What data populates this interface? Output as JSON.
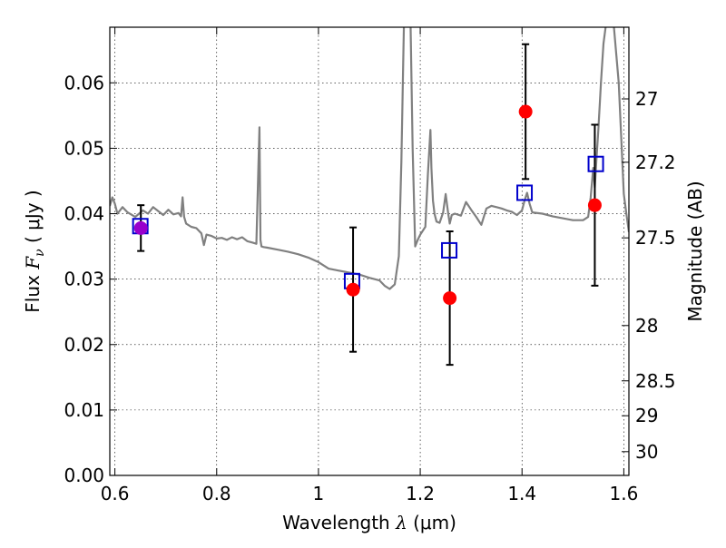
{
  "chart_data": {
    "type": "scatter",
    "title": "",
    "xlabel_prefix": "Wavelength",
    "xlabel_lambda": "λ",
    "xlabel_unit": "(μm)",
    "ylabel_prefix": "Flux",
    "ylabel_symbol": "F",
    "ylabel_sub": "ν",
    "ylabel_unit": "( μJy )",
    "y2label": "Magnitude (AB)",
    "xlim": [
      0.59,
      1.61
    ],
    "ylim": [
      0.0,
      0.0685
    ],
    "grid": true,
    "xticks": [
      {
        "value": 0.6,
        "label": "0.6"
      },
      {
        "value": 0.8,
        "label": "0.8"
      },
      {
        "value": 1.0,
        "label": "1"
      },
      {
        "value": 1.2,
        "label": "1.2"
      },
      {
        "value": 1.4,
        "label": "1.4"
      },
      {
        "value": 1.6,
        "label": "1.6"
      }
    ],
    "yticks": [
      {
        "value": 0.0,
        "label": "0.00"
      },
      {
        "value": 0.01,
        "label": "0.01"
      },
      {
        "value": 0.02,
        "label": "0.02"
      },
      {
        "value": 0.03,
        "label": "0.03"
      },
      {
        "value": 0.04,
        "label": "0.04"
      },
      {
        "value": 0.05,
        "label": "0.05"
      },
      {
        "value": 0.06,
        "label": "0.06"
      }
    ],
    "y2ticks": [
      {
        "value": 27,
        "label": "27"
      },
      {
        "value": 27.2,
        "label": "27.2"
      },
      {
        "value": 27.5,
        "label": "27.5"
      },
      {
        "value": 28,
        "label": "28"
      },
      {
        "value": 28.5,
        "label": "28.5"
      },
      {
        "value": 29,
        "label": "29"
      },
      {
        "value": 30,
        "label": "30"
      }
    ],
    "series": [
      {
        "kind": "model_spectrum",
        "color": "#808080",
        "x": [
          0.59,
          0.595,
          0.6,
          0.605,
          0.615,
          0.625,
          0.64,
          0.655,
          0.665,
          0.675,
          0.685,
          0.695,
          0.705,
          0.715,
          0.725,
          0.73,
          0.733,
          0.736,
          0.74,
          0.75,
          0.76,
          0.77,
          0.775,
          0.78,
          0.79,
          0.8,
          0.81,
          0.82,
          0.83,
          0.84,
          0.85,
          0.86,
          0.87,
          0.878,
          0.882,
          0.884,
          0.886,
          0.888,
          0.892,
          0.9,
          0.92,
          0.94,
          0.96,
          0.98,
          1.0,
          1.02,
          1.04,
          1.06,
          1.08,
          1.1,
          1.12,
          1.13,
          1.14,
          1.15,
          1.158,
          1.163,
          1.168,
          1.172,
          1.175,
          1.178,
          1.181,
          1.185,
          1.19,
          1.195,
          1.2,
          1.21,
          1.215,
          1.22,
          1.222,
          1.225,
          1.228,
          1.232,
          1.238,
          1.245,
          1.25,
          1.255,
          1.258,
          1.262,
          1.268,
          1.28,
          1.29,
          1.3,
          1.31,
          1.32,
          1.33,
          1.34,
          1.35,
          1.36,
          1.37,
          1.38,
          1.39,
          1.4,
          1.405,
          1.41,
          1.415,
          1.42,
          1.44,
          1.46,
          1.48,
          1.5,
          1.52,
          1.53,
          1.535,
          1.54,
          1.543,
          1.546,
          1.55,
          1.555,
          1.56,
          1.565,
          1.57,
          1.575,
          1.58,
          1.59,
          1.6,
          1.605,
          1.61
        ],
        "y": [
          0.0412,
          0.0425,
          0.0415,
          0.04,
          0.041,
          0.0402,
          0.0395,
          0.0405,
          0.04,
          0.041,
          0.0404,
          0.0398,
          0.0406,
          0.0399,
          0.0401,
          0.0396,
          0.0425,
          0.0395,
          0.0385,
          0.038,
          0.0378,
          0.037,
          0.0352,
          0.0368,
          0.0366,
          0.0362,
          0.0363,
          0.036,
          0.0364,
          0.0361,
          0.0364,
          0.0358,
          0.0356,
          0.0354,
          0.047,
          0.0532,
          0.036,
          0.035,
          0.0349,
          0.0348,
          0.0345,
          0.0342,
          0.0338,
          0.0333,
          0.0326,
          0.0316,
          0.0313,
          0.031,
          0.0307,
          0.0302,
          0.0298,
          0.029,
          0.0285,
          0.0292,
          0.0335,
          0.048,
          0.069,
          0.069,
          0.069,
          0.069,
          0.069,
          0.05,
          0.035,
          0.036,
          0.0368,
          0.038,
          0.046,
          0.0528,
          0.047,
          0.042,
          0.04,
          0.0388,
          0.0386,
          0.0402,
          0.043,
          0.04,
          0.0385,
          0.0398,
          0.04,
          0.0397,
          0.0418,
          0.0406,
          0.0395,
          0.0383,
          0.0408,
          0.0412,
          0.041,
          0.0408,
          0.0405,
          0.0403,
          0.0398,
          0.0405,
          0.042,
          0.0432,
          0.0415,
          0.0402,
          0.04,
          0.0396,
          0.0393,
          0.039,
          0.039,
          0.0395,
          0.0425,
          0.047,
          0.044,
          0.048,
          0.053,
          0.06,
          0.066,
          0.069,
          0.069,
          0.069,
          0.069,
          0.06,
          0.043,
          0.04,
          0.0372
        ]
      },
      {
        "kind": "model_photometry",
        "marker": "open-square",
        "color": "#0000cc",
        "x": [
          0.65,
          1.066,
          1.257,
          1.405,
          1.545
        ],
        "y": [
          0.0381,
          0.0297,
          0.0344,
          0.0432,
          0.0476
        ]
      },
      {
        "kind": "observed",
        "marker": "filled-circle",
        "color": "#ff0000",
        "x": [
          0.651,
          1.068,
          1.258,
          1.407,
          1.543
        ],
        "y": [
          0.0378,
          0.0284,
          0.0271,
          0.0556,
          0.0413
        ],
        "yerr": [
          0.0035,
          0.0095,
          0.0102,
          0.0103,
          0.0123
        ]
      }
    ],
    "overlap_marker_color": "#9900cc"
  }
}
